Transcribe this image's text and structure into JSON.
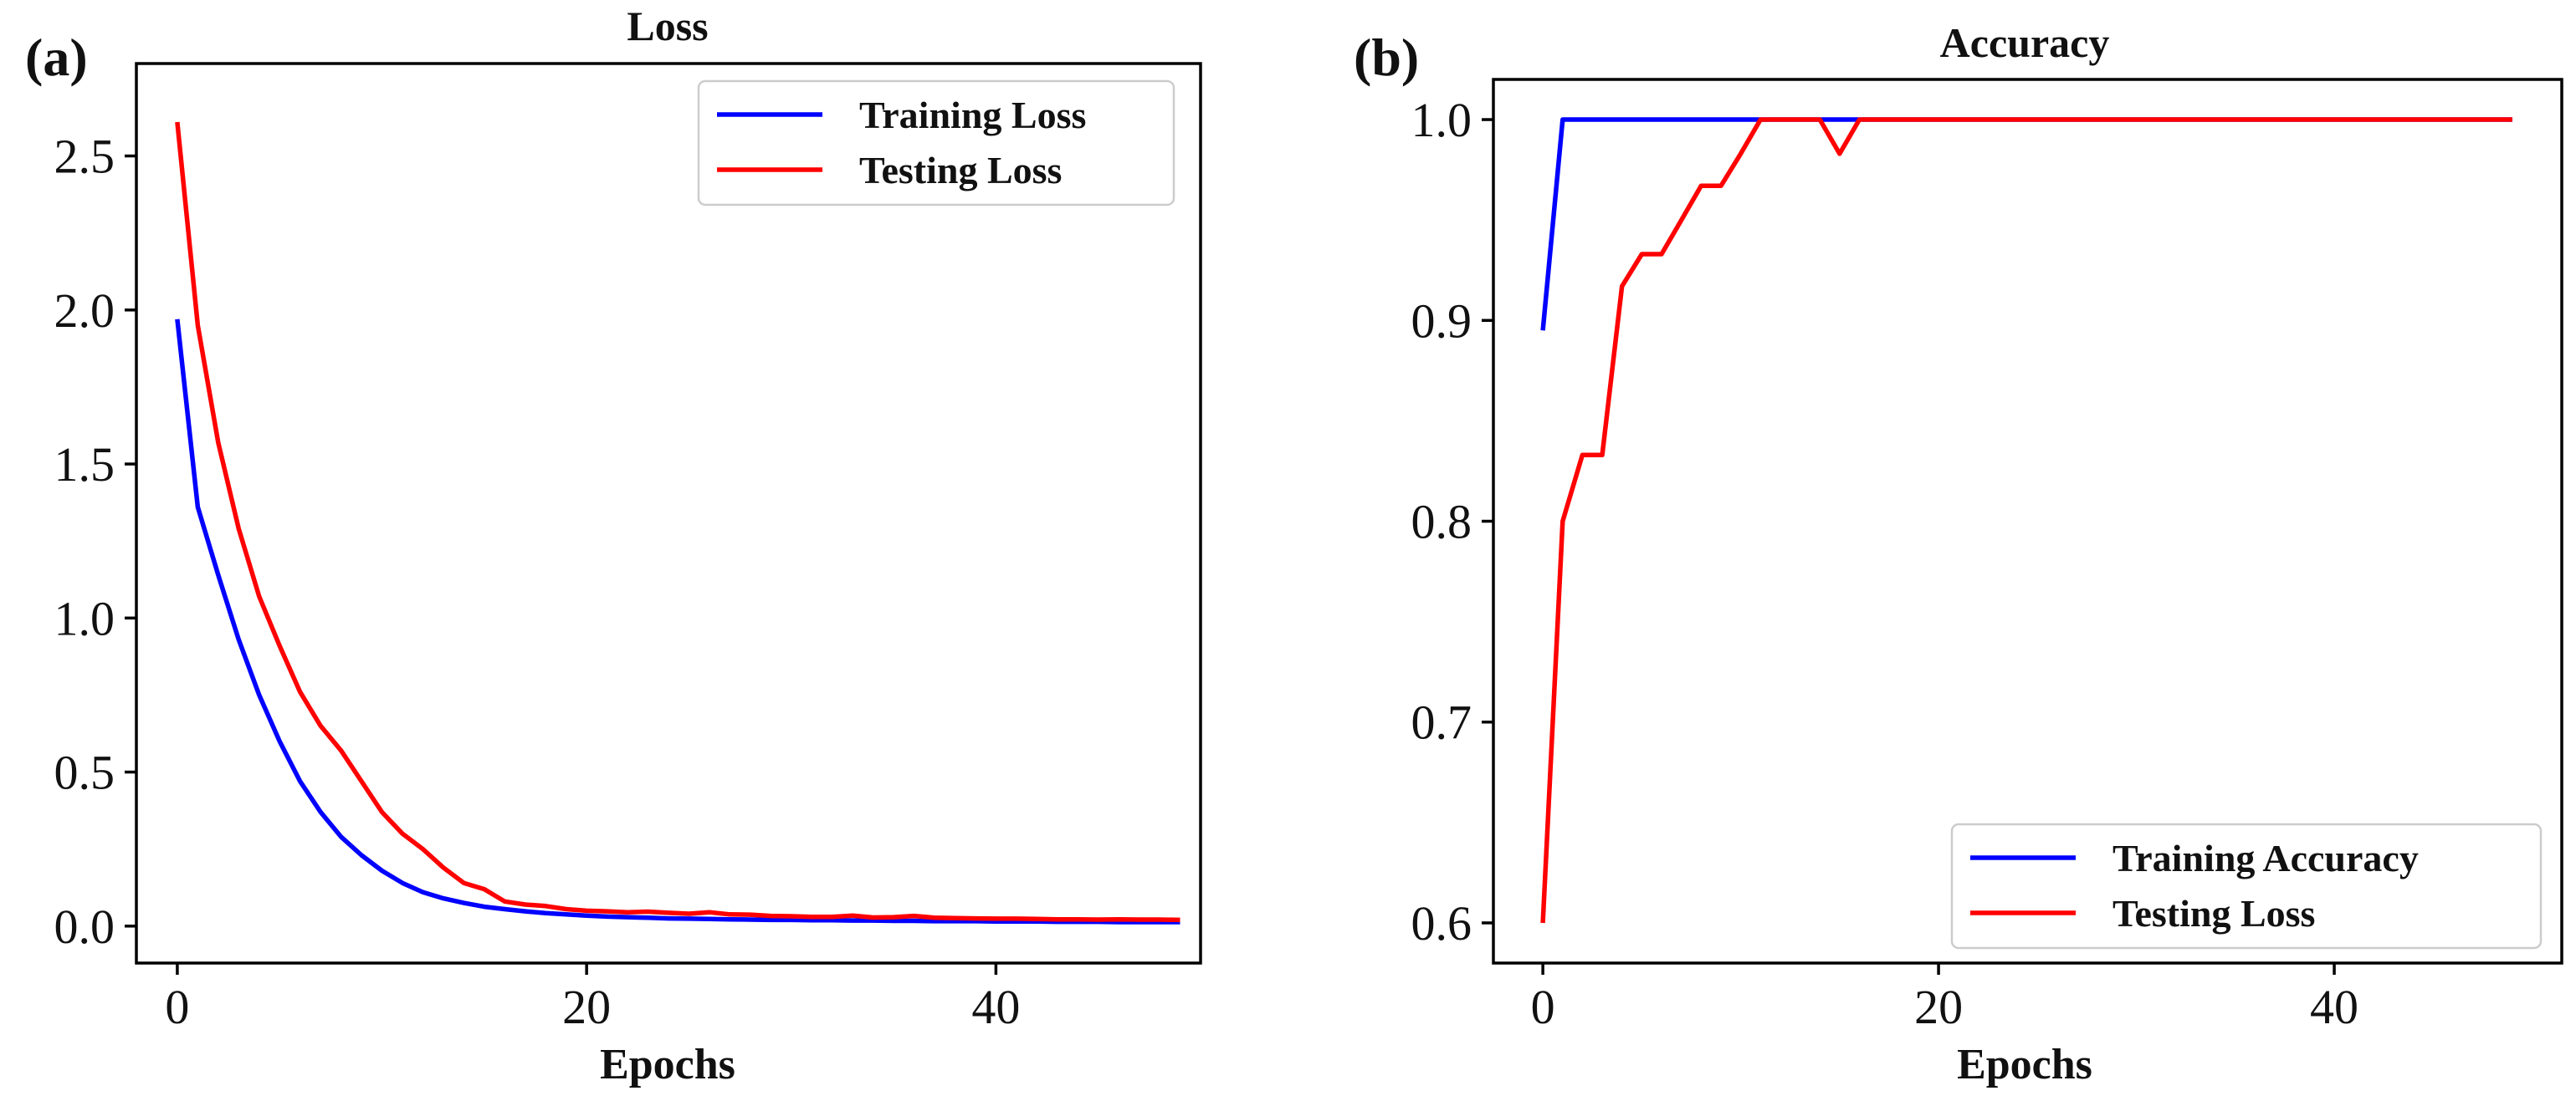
{
  "chart_data": [
    {
      "type": "line",
      "panel_label": "(a)",
      "title": "Loss",
      "xlabel": "Epochs",
      "ylabel": "",
      "xlim": [
        -2,
        50
      ],
      "ylim": [
        -0.12,
        2.8
      ],
      "xticks": [
        0,
        20,
        40
      ],
      "yticks": [
        0.0,
        0.5,
        1.0,
        1.5,
        2.0,
        2.5
      ],
      "ytick_labels": [
        "0.0",
        "0.5",
        "1.0",
        "1.5",
        "2.0",
        "2.5"
      ],
      "legend_position": "top-right",
      "series": [
        {
          "name": "Training Loss",
          "color": "#0000ff",
          "x": [
            0,
            1,
            2,
            3,
            4,
            5,
            6,
            7,
            8,
            9,
            10,
            11,
            12,
            13,
            14,
            15,
            16,
            17,
            18,
            19,
            20,
            21,
            22,
            23,
            24,
            25,
            26,
            27,
            28,
            29,
            30,
            31,
            32,
            33,
            34,
            35,
            36,
            37,
            38,
            39,
            40,
            41,
            42,
            43,
            44,
            45,
            46,
            47,
            48,
            49
          ],
          "values": [
            1.97,
            1.36,
            1.14,
            0.93,
            0.75,
            0.6,
            0.47,
            0.37,
            0.29,
            0.23,
            0.18,
            0.14,
            0.11,
            0.09,
            0.075,
            0.063,
            0.055,
            0.048,
            0.042,
            0.038,
            0.034,
            0.031,
            0.029,
            0.027,
            0.025,
            0.024,
            0.023,
            0.022,
            0.021,
            0.02,
            0.02,
            0.019,
            0.019,
            0.018,
            0.018,
            0.017,
            0.017,
            0.016,
            0.016,
            0.016,
            0.015,
            0.015,
            0.015,
            0.014,
            0.014,
            0.014,
            0.013,
            0.013,
            0.013,
            0.013
          ]
        },
        {
          "name": "Testing Loss",
          "color": "#ff0000",
          "x": [
            0,
            1,
            2,
            3,
            4,
            5,
            6,
            7,
            8,
            9,
            10,
            11,
            12,
            13,
            14,
            15,
            16,
            17,
            18,
            19,
            20,
            21,
            22,
            23,
            24,
            25,
            26,
            27,
            28,
            29,
            30,
            31,
            32,
            33,
            34,
            35,
            36,
            37,
            38,
            39,
            40,
            41,
            42,
            43,
            44,
            45,
            46,
            47,
            48,
            49
          ],
          "values": [
            2.61,
            1.95,
            1.57,
            1.29,
            1.07,
            0.91,
            0.76,
            0.65,
            0.57,
            0.47,
            0.37,
            0.3,
            0.25,
            0.19,
            0.14,
            0.12,
            0.08,
            0.07,
            0.065,
            0.055,
            0.05,
            0.048,
            0.045,
            0.047,
            0.043,
            0.04,
            0.045,
            0.038,
            0.037,
            0.033,
            0.032,
            0.03,
            0.03,
            0.034,
            0.028,
            0.029,
            0.033,
            0.027,
            0.026,
            0.025,
            0.024,
            0.024,
            0.023,
            0.022,
            0.022,
            0.021,
            0.022,
            0.021,
            0.021,
            0.02
          ]
        }
      ]
    },
    {
      "type": "line",
      "panel_label": "(b)",
      "title": "Accuracy",
      "xlabel": "Epochs",
      "ylabel": "",
      "xlim": [
        -2.5,
        51.5
      ],
      "ylim": [
        0.58,
        1.02
      ],
      "xticks": [
        0,
        20,
        40
      ],
      "yticks": [
        0.6,
        0.7,
        0.8,
        0.9,
        1.0
      ],
      "ytick_labels": [
        "0.6",
        "0.7",
        "0.8",
        "0.9",
        "1.0"
      ],
      "legend_position": "bottom-right",
      "series": [
        {
          "name": "Training Accuracy",
          "color": "#0000ff",
          "x": [
            0,
            1,
            2,
            3,
            4,
            5,
            6,
            7,
            8,
            9,
            10,
            11,
            12,
            13,
            14,
            15,
            16,
            17,
            18,
            19,
            20,
            21,
            22,
            23,
            24,
            25,
            26,
            27,
            28,
            29,
            30,
            31,
            32,
            33,
            34,
            35,
            36,
            37,
            38,
            39,
            40,
            41,
            42,
            43,
            44,
            45,
            46,
            47,
            48,
            49
          ],
          "values": [
            0.895,
            1.0,
            1.0,
            1.0,
            1.0,
            1.0,
            1.0,
            1.0,
            1.0,
            1.0,
            1.0,
            1.0,
            1.0,
            1.0,
            1.0,
            1.0,
            1.0,
            1.0,
            1.0,
            1.0,
            1.0,
            1.0,
            1.0,
            1.0,
            1.0,
            1.0,
            1.0,
            1.0,
            1.0,
            1.0,
            1.0,
            1.0,
            1.0,
            1.0,
            1.0,
            1.0,
            1.0,
            1.0,
            1.0,
            1.0,
            1.0,
            1.0,
            1.0,
            1.0,
            1.0,
            1.0,
            1.0,
            1.0,
            1.0,
            1.0
          ]
        },
        {
          "name": "Testing Loss",
          "color": "#ff0000",
          "x": [
            0,
            1,
            2,
            3,
            4,
            5,
            6,
            7,
            8,
            9,
            10,
            11,
            12,
            13,
            14,
            15,
            16,
            17,
            18,
            19,
            20,
            21,
            22,
            23,
            24,
            25,
            26,
            27,
            28,
            29,
            30,
            31,
            32,
            33,
            34,
            35,
            36,
            37,
            38,
            39,
            40,
            41,
            42,
            43,
            44,
            45,
            46,
            47,
            48,
            49
          ],
          "values": [
            0.6,
            0.8,
            0.833,
            0.833,
            0.917,
            0.933,
            0.933,
            0.95,
            0.967,
            0.967,
            0.983,
            1.0,
            1.0,
            1.0,
            1.0,
            0.983,
            1.0,
            1.0,
            1.0,
            1.0,
            1.0,
            1.0,
            1.0,
            1.0,
            1.0,
            1.0,
            1.0,
            1.0,
            1.0,
            1.0,
            1.0,
            1.0,
            1.0,
            1.0,
            1.0,
            1.0,
            1.0,
            1.0,
            1.0,
            1.0,
            1.0,
            1.0,
            1.0,
            1.0,
            1.0,
            1.0,
            1.0,
            1.0,
            1.0,
            1.0
          ]
        }
      ]
    }
  ]
}
